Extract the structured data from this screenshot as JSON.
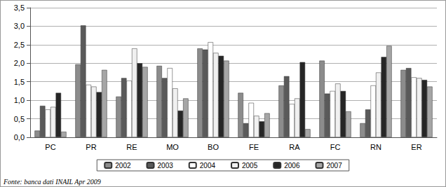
{
  "chart_data": {
    "type": "bar",
    "categories": [
      "PC",
      "PR",
      "RE",
      "MO",
      "BO",
      "FE",
      "RA",
      "FC",
      "RN",
      "ER"
    ],
    "series": [
      {
        "name": "2002",
        "color": "#8c8c8c",
        "values": [
          0.18,
          1.97,
          1.1,
          1.93,
          2.4,
          1.2,
          1.4,
          2.07,
          0.38,
          1.82
        ]
      },
      {
        "name": "2003",
        "color": "#5a5a5a",
        "values": [
          0.85,
          3.02,
          1.6,
          1.6,
          2.37,
          0.38,
          1.65,
          1.18,
          0.75,
          1.87
        ]
      },
      {
        "name": "2004",
        "color": "#ffffff",
        "values": [
          0.75,
          1.42,
          1.53,
          1.87,
          2.57,
          0.93,
          0.9,
          1.25,
          1.4,
          1.62
        ]
      },
      {
        "name": "2005",
        "color": "#f0f0f0",
        "values": [
          0.82,
          1.37,
          2.4,
          1.32,
          2.28,
          0.58,
          1.05,
          1.45,
          1.75,
          1.6
        ]
      },
      {
        "name": "2006",
        "color": "#262626",
        "values": [
          1.2,
          1.22,
          2.0,
          0.72,
          2.2,
          0.43,
          2.03,
          1.25,
          2.17,
          1.55
        ]
      },
      {
        "name": "2007",
        "color": "#a6a6a6",
        "values": [
          0.15,
          1.82,
          1.9,
          1.05,
          2.07,
          0.65,
          0.22,
          0.7,
          2.47,
          1.37
        ]
      }
    ],
    "ylim": [
      0,
      3.5
    ],
    "yticks": [
      {
        "value": 0,
        "label": "0,0"
      },
      {
        "value": 0.5,
        "label": "0,5"
      },
      {
        "value": 1,
        "label": "1,0"
      },
      {
        "value": 1.5,
        "label": "1,5"
      },
      {
        "value": 2,
        "label": "2,0"
      },
      {
        "value": 2.5,
        "label": "2,5"
      },
      {
        "value": 3,
        "label": "3,0"
      },
      {
        "value": 3.5,
        "label": "3,5"
      }
    ],
    "grid": true,
    "legend": "bottom",
    "annotations": [
      "Fonte: banca dati INAIL Apr 2009"
    ]
  }
}
